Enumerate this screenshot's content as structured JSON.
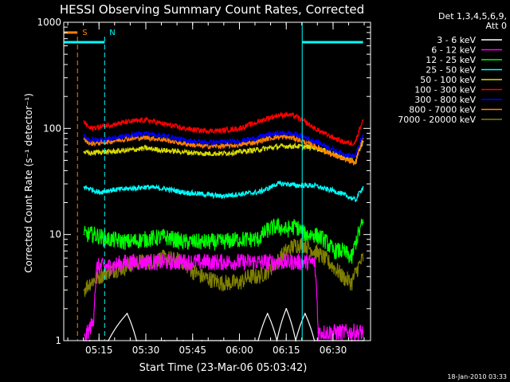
{
  "chart_data": {
    "type": "line",
    "title": "HESSI Observing Summary Count Rates, Corrected",
    "xlabel": "Start Time (23-Mar-06 05:03:42)",
    "ylabel": "Corrected Count Rate (s⁻¹ detector⁻¹)",
    "ylog": true,
    "xlim": [
      5.0617,
      6.7
    ],
    "ylim": [
      1,
      1000
    ],
    "x_ticks": [
      {
        "v": 5.25,
        "label": "05:15"
      },
      {
        "v": 5.5,
        "label": "05:30"
      },
      {
        "v": 5.75,
        "label": "05:45"
      },
      {
        "v": 6.0,
        "label": "06:00"
      },
      {
        "v": 6.25,
        "label": "06:15"
      },
      {
        "v": 6.5,
        "label": "06:30"
      }
    ],
    "y_ticks": [
      {
        "v": 1,
        "label": "1"
      },
      {
        "v": 10,
        "label": "10"
      },
      {
        "v": 100,
        "label": "100"
      },
      {
        "v": 1000,
        "label": "1000"
      }
    ],
    "legend": {
      "position": "right",
      "header": [
        "Det 1,3,4,5,6,9,",
        "Att 0"
      ]
    },
    "series": [
      {
        "name": "3 - 6 keV",
        "color": "#ffffff",
        "x": [
          5.17,
          5.2,
          5.3,
          5.4,
          5.45,
          5.5,
          5.6,
          5.7,
          5.8,
          5.9,
          6.0,
          6.1,
          6.15,
          6.2,
          6.25,
          6.3,
          6.35,
          6.4,
          6.5,
          6.6,
          6.66
        ],
        "y": [
          1,
          1,
          1,
          1.8,
          1,
          1,
          1,
          1,
          1,
          1,
          1,
          1,
          1.8,
          1,
          2,
          1,
          1.8,
          1,
          1,
          1,
          1
        ]
      },
      {
        "name": "6 - 12 keV",
        "color": "#ff00ff",
        "x": [
          5.17,
          5.22,
          5.24,
          5.3,
          5.4,
          5.5,
          5.6,
          5.7,
          5.8,
          5.9,
          6.0,
          6.1,
          6.2,
          6.3,
          6.35,
          6.4,
          6.42,
          6.5,
          6.6,
          6.66
        ],
        "y": [
          1,
          1.5,
          5,
          5,
          5.5,
          5.5,
          5.5,
          5.5,
          5.5,
          5.5,
          5.5,
          5.5,
          5.5,
          5.5,
          5.5,
          5.5,
          1.2,
          1.2,
          1.2,
          1.2
        ]
      },
      {
        "name": "12 - 25 keV",
        "color": "#00ff00",
        "x": [
          5.17,
          5.22,
          5.3,
          5.4,
          5.5,
          5.6,
          5.7,
          5.8,
          5.9,
          6.0,
          6.05,
          6.1,
          6.15,
          6.2,
          6.25,
          6.3,
          6.35,
          6.4,
          6.45,
          6.5,
          6.55,
          6.6,
          6.66
        ],
        "y": [
          10,
          10,
          9,
          8.5,
          9,
          9.5,
          8.5,
          8.5,
          8.5,
          9,
          9,
          9,
          11,
          12,
          11,
          12,
          10,
          10,
          9,
          7,
          7,
          6,
          13
        ]
      },
      {
        "name": "25 - 50 keV",
        "color": "#00ffff",
        "x": [
          5.17,
          5.2,
          5.25,
          5.3,
          5.4,
          5.5,
          5.6,
          5.7,
          5.8,
          5.9,
          6.0,
          6.1,
          6.15,
          6.2,
          6.25,
          6.3,
          6.35,
          6.4,
          6.45,
          6.5,
          6.55,
          6.6,
          6.62,
          6.66
        ],
        "y": [
          28,
          27,
          25,
          26,
          27,
          28,
          27,
          25,
          24,
          23,
          24,
          25,
          27,
          30,
          30,
          29,
          29,
          29,
          27,
          26,
          24,
          22,
          21,
          28
        ]
      },
      {
        "name": "50 - 100 keV",
        "color": "#dddd00",
        "x": [
          5.17,
          5.2,
          5.25,
          5.3,
          5.4,
          5.5,
          5.6,
          5.7,
          5.8,
          5.9,
          6.0,
          6.1,
          6.15,
          6.2,
          6.25,
          6.3,
          6.35,
          6.4,
          6.45,
          6.5,
          6.55,
          6.6,
          6.62,
          6.66
        ],
        "y": [
          60,
          58,
          60,
          60,
          62,
          65,
          62,
          60,
          58,
          58,
          60,
          63,
          65,
          67,
          68,
          68,
          67,
          66,
          62,
          58,
          53,
          50,
          48,
          75
        ]
      },
      {
        "name": "100 - 300 keV",
        "color": "#ff0000",
        "x": [
          5.17,
          5.2,
          5.25,
          5.3,
          5.4,
          5.5,
          5.6,
          5.7,
          5.8,
          5.9,
          6.0,
          6.1,
          6.15,
          6.2,
          6.25,
          6.3,
          6.35,
          6.4,
          6.45,
          6.5,
          6.55,
          6.6,
          6.62,
          6.66
        ],
        "y": [
          115,
          100,
          103,
          107,
          115,
          120,
          110,
          100,
          95,
          95,
          100,
          115,
          125,
          132,
          135,
          130,
          115,
          100,
          90,
          82,
          75,
          72,
          75,
          120
        ]
      },
      {
        "name": "300 - 800 keV",
        "color": "#0000ff",
        "x": [
          5.17,
          5.2,
          5.25,
          5.3,
          5.4,
          5.5,
          5.6,
          5.7,
          5.8,
          5.9,
          6.0,
          6.1,
          6.15,
          6.2,
          6.25,
          6.3,
          6.35,
          6.4,
          6.45,
          6.5,
          6.55,
          6.6,
          6.62,
          6.66
        ],
        "y": [
          85,
          78,
          78,
          80,
          85,
          90,
          85,
          78,
          74,
          74,
          76,
          82,
          87,
          90,
          90,
          88,
          82,
          76,
          70,
          63,
          58,
          55,
          55,
          85
        ]
      },
      {
        "name": "800 - 7000 keV",
        "color": "#ff8000",
        "x": [
          5.17,
          5.2,
          5.25,
          5.3,
          5.4,
          5.5,
          5.6,
          5.7,
          5.8,
          5.9,
          6.0,
          6.1,
          6.15,
          6.2,
          6.25,
          6.3,
          6.35,
          6.4,
          6.45,
          6.5,
          6.55,
          6.6,
          6.62,
          6.66
        ],
        "y": [
          80,
          72,
          73,
          75,
          80,
          82,
          78,
          72,
          68,
          68,
          70,
          75,
          80,
          83,
          83,
          80,
          74,
          68,
          62,
          56,
          52,
          48,
          47,
          80
        ]
      },
      {
        "name": "7000 - 20000 keV",
        "color": "#808000",
        "x": [
          5.17,
          5.2,
          5.25,
          5.3,
          5.4,
          5.45,
          5.5,
          5.6,
          5.7,
          5.75,
          5.8,
          5.9,
          6.0,
          6.05,
          6.1,
          6.15,
          6.2,
          6.25,
          6.3,
          6.35,
          6.4,
          6.45,
          6.5,
          6.55,
          6.6,
          6.66
        ],
        "y": [
          3,
          3.5,
          4,
          4.5,
          5,
          5.5,
          5.5,
          6,
          5.5,
          4.5,
          4,
          3.5,
          3.5,
          4,
          4,
          4.5,
          5.5,
          7,
          8,
          8,
          7,
          6,
          5,
          4,
          3.5,
          6
        ]
      }
    ],
    "annotations": [
      {
        "label": "S",
        "color": "#ff8000",
        "x": 5.135
      },
      {
        "label": "N",
        "color": "#00ffff",
        "x": 5.28
      },
      {
        "label": "",
        "color": "#00ffff",
        "x": 6.335
      }
    ],
    "state_bars": [
      {
        "color": "#ff8000",
        "x_start": 5.0617,
        "x_end": 5.135,
        "level": 800
      },
      {
        "color": "#00ffff",
        "x_start": 5.0617,
        "x_end": 5.28,
        "level": 650
      },
      {
        "color": "#00ffff",
        "x_start": 6.335,
        "x_end": 6.66,
        "level": 650
      }
    ],
    "footer_date": "18-Jan-2010 03:33"
  }
}
